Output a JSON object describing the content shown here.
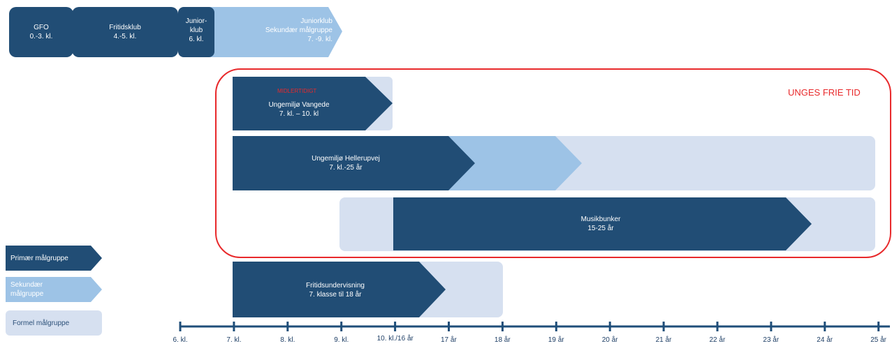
{
  "colors": {
    "primary": "#214d75",
    "secondary": "#9dc3e6",
    "formal": "#d6e0f0",
    "axis": "#1f4e79",
    "highlight": "#e8292b"
  },
  "top_row": {
    "gfo": {
      "line1": "GFO",
      "line2": "0.-3. kl."
    },
    "fritidsklub": {
      "line1": "Fritidsklub",
      "line2": "4.-5. kl."
    },
    "juniorklub": {
      "line1": "Junior-",
      "line2": "klub",
      "line3": "6. kl."
    },
    "juniorklub_secondary": {
      "line1": "Juniorklub",
      "line2": "Sekundær målgruppe",
      "line3": "7. -9. kl."
    }
  },
  "frame": {
    "title": "UNGES FRIE TID"
  },
  "vangede": {
    "note": "MIDLERTIDIGT",
    "line1": "Ungemiljø Vangede",
    "line2": "7. kl. – 10. kl"
  },
  "hellerupvej": {
    "line1": "Ungemiljø Hellerupvej",
    "line2": "7. kl.-25 år"
  },
  "musikbunker": {
    "line1": "Musikbunker",
    "line2": "15-25 år"
  },
  "fritidsundervisning": {
    "line1": "Fritidsundervisning",
    "line2": "7. klasse til 18 år"
  },
  "legend": {
    "primary": "Primær målgruppe",
    "secondary_line1": "Sekundær",
    "secondary_line2": "målgruppe",
    "formal": "Formel  målgruppe"
  },
  "axis": {
    "ticks": [
      "6. kl.",
      "7. kl.",
      "8. kl.",
      "9. kl.",
      "10. kl./16 år",
      "17 år",
      "18 år",
      "19 år",
      "20 år",
      "21 år",
      "22 år",
      "23 år",
      "24 år",
      "25 år"
    ]
  }
}
